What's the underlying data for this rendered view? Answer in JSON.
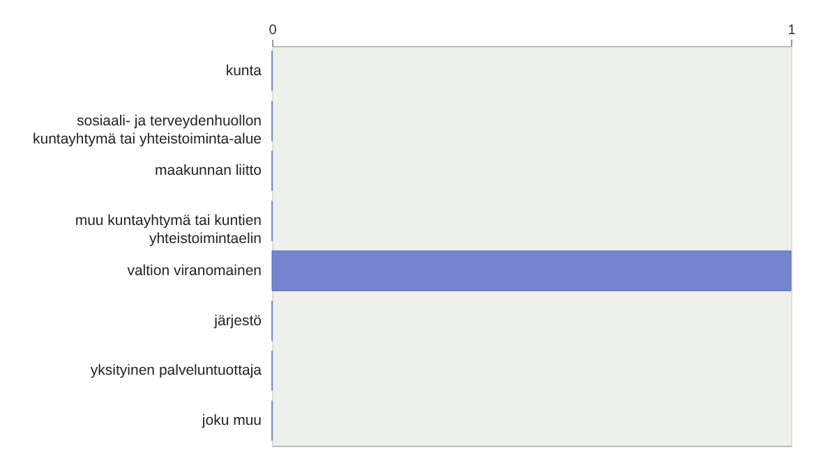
{
  "chart_data": {
    "type": "bar",
    "orientation": "horizontal",
    "categories": [
      "kunta",
      "sosiaali- ja terveydenhuollon kuntayhtymä tai yhteistoiminta-alue",
      "maakunnan liitto",
      "muu kuntayhtymä tai kuntien yhteistoimintaelin",
      "valtion viranomainen",
      "järjestö",
      "yksityinen palveluntuottaja",
      "joku muu"
    ],
    "values": [
      0,
      0,
      0,
      0,
      1,
      0,
      0,
      0
    ],
    "color": "#7584cf",
    "xlim": [
      0,
      1
    ],
    "xticks": [
      0,
      1
    ],
    "grid": "x"
  }
}
